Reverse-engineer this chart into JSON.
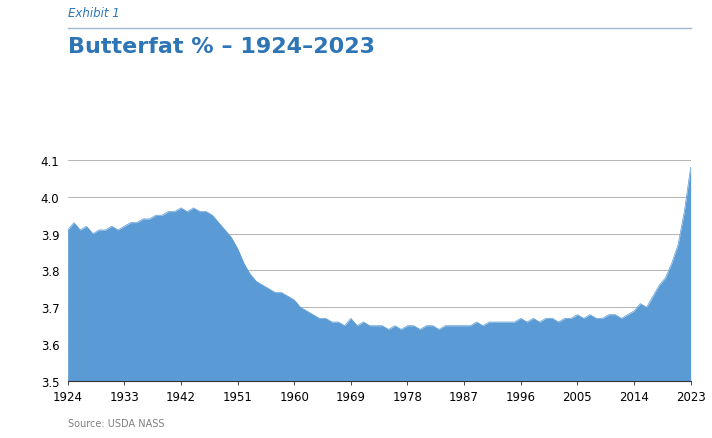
{
  "title": "Butterfat % – 1924–2023",
  "exhibit_label": "Exhibit 1",
  "source_label": "Source: USDA NASS",
  "fill_color": "#5b9bd5",
  "background_color": "#ffffff",
  "title_color": "#2e75b6",
  "exhibit_color": "#2e75b6",
  "source_color": "#808080",
  "ylim": [
    3.5,
    4.12
  ],
  "yticks": [
    3.5,
    3.6,
    3.7,
    3.8,
    3.9,
    4.0,
    4.1
  ],
  "xtick_labels": [
    "1924",
    "1933",
    "1942",
    "1951",
    "1960",
    "1969",
    "1978",
    "1987",
    "1996",
    "2005",
    "2014",
    "2023"
  ],
  "years": [
    1924,
    1925,
    1926,
    1927,
    1928,
    1929,
    1930,
    1931,
    1932,
    1933,
    1934,
    1935,
    1936,
    1937,
    1938,
    1939,
    1940,
    1941,
    1942,
    1943,
    1944,
    1945,
    1946,
    1947,
    1948,
    1949,
    1950,
    1951,
    1952,
    1953,
    1954,
    1955,
    1956,
    1957,
    1958,
    1959,
    1960,
    1961,
    1962,
    1963,
    1964,
    1965,
    1966,
    1967,
    1968,
    1969,
    1970,
    1971,
    1972,
    1973,
    1974,
    1975,
    1976,
    1977,
    1978,
    1979,
    1980,
    1981,
    1982,
    1983,
    1984,
    1985,
    1986,
    1987,
    1988,
    1989,
    1990,
    1991,
    1992,
    1993,
    1994,
    1995,
    1996,
    1997,
    1998,
    1999,
    2000,
    2001,
    2002,
    2003,
    2004,
    2005,
    2006,
    2007,
    2008,
    2009,
    2010,
    2011,
    2012,
    2013,
    2014,
    2015,
    2016,
    2017,
    2018,
    2019,
    2020,
    2021,
    2022,
    2023
  ],
  "values": [
    3.91,
    3.93,
    3.91,
    3.92,
    3.9,
    3.91,
    3.91,
    3.92,
    3.91,
    3.92,
    3.93,
    3.93,
    3.94,
    3.94,
    3.95,
    3.95,
    3.96,
    3.96,
    3.97,
    3.96,
    3.97,
    3.96,
    3.96,
    3.95,
    3.93,
    3.91,
    3.89,
    3.86,
    3.82,
    3.79,
    3.77,
    3.76,
    3.75,
    3.74,
    3.74,
    3.73,
    3.72,
    3.7,
    3.69,
    3.68,
    3.67,
    3.67,
    3.66,
    3.66,
    3.65,
    3.67,
    3.65,
    3.66,
    3.65,
    3.65,
    3.65,
    3.64,
    3.65,
    3.64,
    3.65,
    3.65,
    3.64,
    3.65,
    3.65,
    3.64,
    3.65,
    3.65,
    3.65,
    3.65,
    3.65,
    3.66,
    3.65,
    3.66,
    3.66,
    3.66,
    3.66,
    3.66,
    3.67,
    3.66,
    3.67,
    3.66,
    3.67,
    3.67,
    3.66,
    3.67,
    3.67,
    3.68,
    3.67,
    3.68,
    3.67,
    3.67,
    3.68,
    3.68,
    3.67,
    3.68,
    3.69,
    3.71,
    3.7,
    3.73,
    3.76,
    3.78,
    3.82,
    3.87,
    3.96,
    4.08
  ]
}
